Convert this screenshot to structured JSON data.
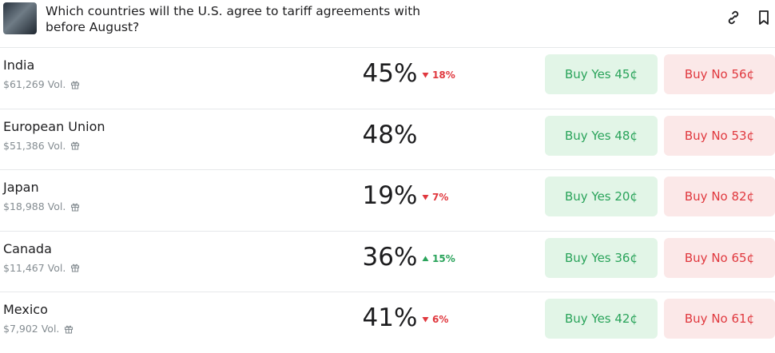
{
  "header": {
    "title": "Which countries will the U.S. agree to tariff agreements with before August?"
  },
  "rows": [
    {
      "name": "India",
      "volume": "$61,269 Vol.",
      "chance": "45%",
      "change": "18%",
      "direction": "down",
      "buy_yes": "Buy Yes 45¢",
      "buy_no": "Buy No 56¢"
    },
    {
      "name": "European Union",
      "volume": "$51,386 Vol.",
      "chance": "48%",
      "buy_yes": "Buy Yes 48¢",
      "buy_no": "Buy No 53¢"
    },
    {
      "name": "Japan",
      "volume": "$18,988 Vol.",
      "chance": "19%",
      "change": "7%",
      "direction": "down",
      "buy_yes": "Buy Yes 20¢",
      "buy_no": "Buy No 82¢"
    },
    {
      "name": "Canada",
      "volume": "$11,467 Vol.",
      "chance": "36%",
      "change": "15%",
      "direction": "up",
      "buy_yes": "Buy Yes 36¢",
      "buy_no": "Buy No 65¢"
    },
    {
      "name": "Mexico",
      "volume": "$7,902 Vol.",
      "chance": "41%",
      "change": "6%",
      "direction": "down",
      "buy_yes": "Buy Yes 42¢",
      "buy_no": "Buy No 61¢"
    }
  ]
}
